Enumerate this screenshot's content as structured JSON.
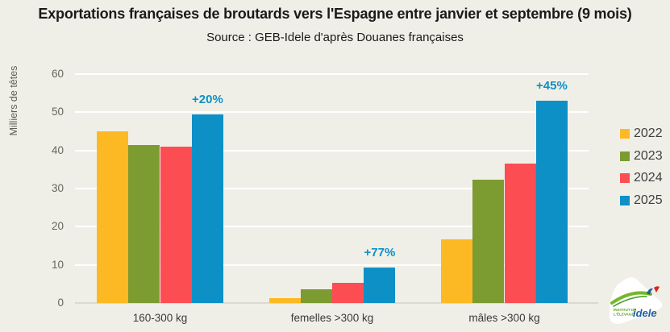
{
  "title": "Exportations françaises de broutards vers l'Espagne entre janvier et septembre (9 mois)",
  "subtitle": "Source : GEB-Idele d'après Douanes françaises",
  "chart_data": {
    "type": "bar",
    "categories": [
      "160-300 kg",
      "femelles >300 kg",
      "mâles >300 kg"
    ],
    "series": [
      {
        "name": "2022",
        "color": "#FDB924",
        "values": [
          45,
          1.3,
          16.7
        ]
      },
      {
        "name": "2023",
        "color": "#7C9B31",
        "values": [
          41.5,
          3.6,
          32.3
        ]
      },
      {
        "name": "2024",
        "color": "#FC4D53",
        "values": [
          41,
          5.2,
          36.5
        ]
      },
      {
        "name": "2025",
        "color": "#0D90C6",
        "values": [
          49.5,
          9.2,
          53
        ]
      }
    ],
    "ylabel": "Milliers de têtes",
    "xlabel": "",
    "ylim": [
      0,
      60
    ],
    "yticks": [
      0,
      10,
      20,
      30,
      40,
      50,
      60
    ],
    "grid": true,
    "legend_position": "right",
    "annotations": [
      {
        "text": "+20%",
        "category_index": 0
      },
      {
        "text": "+77%",
        "category_index": 1
      },
      {
        "text": "+45%",
        "category_index": 2
      }
    ],
    "annotation_color": "#0D90C6"
  },
  "colors": {
    "background": "#F0EFE7",
    "gridline": "#FFFFFF",
    "axis_line": "#DADAD0",
    "title_text": "#1A1A1A",
    "tick_text": "#66665E",
    "category_text": "#3A3A3A",
    "legend_text": "#3F3F3F"
  },
  "logo": {
    "line1": "INSTITUT DE",
    "line2": "L'ÉLEVAGE",
    "brand": "idele"
  }
}
